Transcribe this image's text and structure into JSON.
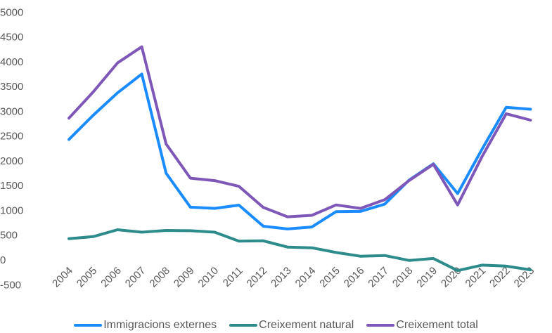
{
  "chart_data": {
    "type": "line",
    "title": "",
    "xlabel": "",
    "ylabel": "",
    "categories": [
      "2004",
      "2005",
      "2006",
      "2007",
      "2008",
      "2009",
      "2010",
      "2011",
      "2012",
      "2013",
      "2014",
      "2015",
      "2016",
      "2017",
      "2018",
      "2019",
      "2020",
      "2021",
      "2022",
      "2023"
    ],
    "yticks": [
      "-500",
      "0",
      "500",
      "1000",
      "1500",
      "2000",
      "2500",
      "3000",
      "3500",
      "4000",
      "4500",
      "5000"
    ],
    "ylim": [
      -500,
      5000
    ],
    "grid": false,
    "legend_position": "bottom",
    "series": [
      {
        "name": "Immigracions externes",
        "color": "#1a8cff",
        "values": [
          2430,
          2920,
          3370,
          3750,
          1750,
          1065,
          1040,
          1105,
          680,
          625,
          665,
          975,
          980,
          1125,
          1610,
          1940,
          1340,
          2230,
          3080,
          3040
        ]
      },
      {
        "name": "Creixement natural",
        "color": "#2e8b8b",
        "values": [
          430,
          470,
          610,
          560,
          595,
          590,
          560,
          380,
          385,
          260,
          245,
          150,
          75,
          90,
          -10,
          30,
          -215,
          -105,
          -125,
          -200
        ]
      },
      {
        "name": "Creixement total",
        "color": "#7e57b8",
        "values": [
          2860,
          3390,
          3975,
          4300,
          2340,
          1650,
          1600,
          1485,
          1060,
          870,
          900,
          1110,
          1040,
          1215,
          1600,
          1930,
          1110,
          2080,
          2950,
          2820
        ]
      }
    ]
  }
}
